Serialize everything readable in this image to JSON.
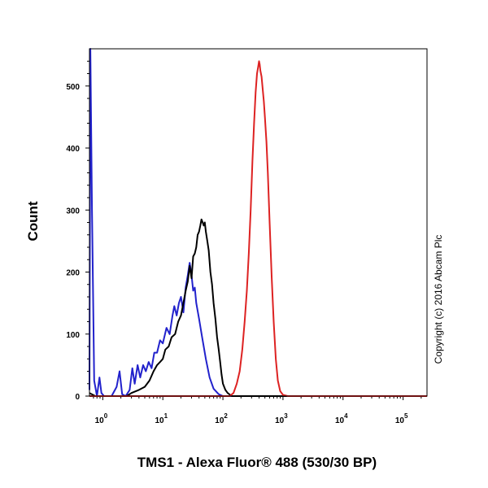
{
  "chart_data": {
    "type": "line",
    "title": "",
    "xlabel": "TMS1 - Alexa Fluor® 488 (530/30 BP)",
    "ylabel": "Count",
    "x_scale": "log",
    "xlim": [
      0.6,
      250000
    ],
    "ylim": [
      0,
      560
    ],
    "x_ticks": [
      {
        "value": 1,
        "base": "10",
        "exp": "0"
      },
      {
        "value": 10,
        "base": "10",
        "exp": "1"
      },
      {
        "value": 100,
        "base": "10",
        "exp": "2"
      },
      {
        "value": 1000,
        "base": "10",
        "exp": "3"
      },
      {
        "value": 10000,
        "base": "10",
        "exp": "4"
      },
      {
        "value": 100000,
        "base": "10",
        "exp": "5"
      }
    ],
    "y_ticks": [
      {
        "value": 0,
        "label": "0"
      },
      {
        "value": 100,
        "label": "100"
      },
      {
        "value": 200,
        "label": "200"
      },
      {
        "value": 300,
        "label": "300"
      },
      {
        "value": 400,
        "label": "400"
      },
      {
        "value": 500,
        "label": "500"
      }
    ],
    "grid": false,
    "legend": "none",
    "annotation": "Copyright (c) 2016 Abcam Plc",
    "series": [
      {
        "color": "#2222cc",
        "points": [
          [
            0.6,
            10
          ],
          [
            0.62,
            560
          ],
          [
            0.66,
            300
          ],
          [
            0.72,
            25
          ],
          [
            0.8,
            0
          ],
          [
            0.88,
            30
          ],
          [
            0.95,
            5
          ],
          [
            1.05,
            0
          ],
          [
            1.4,
            0
          ],
          [
            1.7,
            15
          ],
          [
            1.9,
            40
          ],
          [
            2.1,
            3
          ],
          [
            2.4,
            0
          ],
          [
            2.8,
            10
          ],
          [
            3.1,
            45
          ],
          [
            3.4,
            20
          ],
          [
            3.8,
            50
          ],
          [
            4.2,
            30
          ],
          [
            4.7,
            50
          ],
          [
            5.2,
            40
          ],
          [
            5.8,
            55
          ],
          [
            6.5,
            45
          ],
          [
            7.2,
            70
          ],
          [
            8,
            70
          ],
          [
            9,
            90
          ],
          [
            10,
            85
          ],
          [
            11.5,
            110
          ],
          [
            13,
            100
          ],
          [
            14.5,
            130
          ],
          [
            15.5,
            145
          ],
          [
            17,
            130
          ],
          [
            18.5,
            150
          ],
          [
            20,
            160
          ],
          [
            22,
            135
          ],
          [
            24,
            175
          ],
          [
            26,
            195
          ],
          [
            28,
            215
          ],
          [
            30,
            195
          ],
          [
            32,
            170
          ],
          [
            34,
            175
          ],
          [
            36,
            150
          ],
          [
            40,
            125
          ],
          [
            45,
            95
          ],
          [
            52,
            60
          ],
          [
            60,
            30
          ],
          [
            70,
            12
          ],
          [
            85,
            3
          ],
          [
            100,
            0
          ],
          [
            250000,
            0
          ]
        ]
      },
      {
        "color": "#000000",
        "points": [
          [
            0.6,
            5
          ],
          [
            0.75,
            0
          ],
          [
            1.5,
            0
          ],
          [
            2.5,
            0
          ],
          [
            3,
            5
          ],
          [
            4,
            10
          ],
          [
            5,
            15
          ],
          [
            6,
            25
          ],
          [
            7,
            40
          ],
          [
            8,
            50
          ],
          [
            9,
            55
          ],
          [
            10,
            60
          ],
          [
            11,
            75
          ],
          [
            12.5,
            80
          ],
          [
            14,
            95
          ],
          [
            16,
            100
          ],
          [
            18,
            120
          ],
          [
            20,
            130
          ],
          [
            22,
            150
          ],
          [
            24,
            170
          ],
          [
            26,
            185
          ],
          [
            28,
            210
          ],
          [
            30,
            190
          ],
          [
            32,
            225
          ],
          [
            34,
            230
          ],
          [
            36,
            240
          ],
          [
            38,
            260
          ],
          [
            40,
            265
          ],
          [
            42,
            275
          ],
          [
            44,
            285
          ],
          [
            46,
            280
          ],
          [
            48,
            275
          ],
          [
            50,
            280
          ],
          [
            52,
            265
          ],
          [
            55,
            250
          ],
          [
            58,
            235
          ],
          [
            62,
            200
          ],
          [
            66,
            180
          ],
          [
            70,
            150
          ],
          [
            75,
            125
          ],
          [
            80,
            95
          ],
          [
            85,
            75
          ],
          [
            90,
            55
          ],
          [
            95,
            35
          ],
          [
            100,
            20
          ],
          [
            110,
            10
          ],
          [
            120,
            5
          ],
          [
            140,
            0
          ],
          [
            250000,
            0
          ]
        ]
      },
      {
        "color": "#dd2222",
        "points": [
          [
            0.6,
            0
          ],
          [
            130,
            0
          ],
          [
            150,
            5
          ],
          [
            170,
            20
          ],
          [
            190,
            40
          ],
          [
            210,
            75
          ],
          [
            230,
            120
          ],
          [
            250,
            170
          ],
          [
            270,
            230
          ],
          [
            290,
            300
          ],
          [
            310,
            380
          ],
          [
            330,
            440
          ],
          [
            350,
            490
          ],
          [
            370,
            520
          ],
          [
            385,
            530
          ],
          [
            400,
            540
          ],
          [
            410,
            535
          ],
          [
            420,
            525
          ],
          [
            440,
            515
          ],
          [
            460,
            495
          ],
          [
            480,
            475
          ],
          [
            500,
            450
          ],
          [
            530,
            410
          ],
          [
            560,
            360
          ],
          [
            600,
            280
          ],
          [
            650,
            190
          ],
          [
            700,
            120
          ],
          [
            760,
            60
          ],
          [
            820,
            25
          ],
          [
            900,
            8
          ],
          [
            1000,
            2
          ],
          [
            1200,
            0
          ],
          [
            250000,
            0
          ]
        ]
      }
    ]
  }
}
